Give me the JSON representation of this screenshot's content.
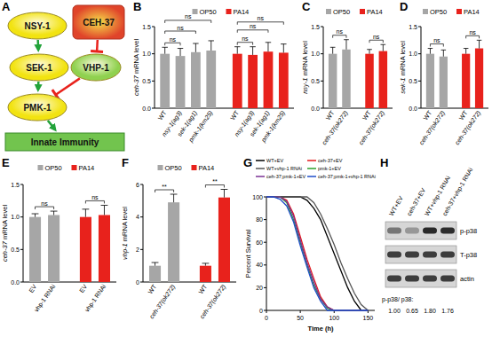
{
  "diagram": {
    "title": "A",
    "nodes": [
      {
        "label": "NSY-1",
        "shape": "ellipse",
        "color": "#f2e311"
      },
      {
        "label": "CEH-37",
        "shape": "rounded_box",
        "color": "#e0442a"
      },
      {
        "label": "SEK-1",
        "shape": "ellipse",
        "color": "#f2e311"
      },
      {
        "label": "VHP-1",
        "shape": "ellipse",
        "color": "#8fd14f"
      },
      {
        "label": "PMK-1",
        "shape": "ellipse",
        "color": "#f2e311"
      },
      {
        "label": "Innate Immunity",
        "shape": "box",
        "color": "#72c44e"
      }
    ],
    "edges": [
      {
        "from": 0,
        "to": 2,
        "type": "activate"
      },
      {
        "from": 2,
        "to": 4,
        "type": "activate"
      },
      {
        "from": 4,
        "to": 5,
        "type": "activate"
      },
      {
        "from": 1,
        "to": 3,
        "type": "inhibit"
      },
      {
        "from": 3,
        "to": 4,
        "type": "inhibit"
      }
    ]
  },
  "chart_data": [
    {
      "type": "bar",
      "title": "B",
      "y_label": "ceh-37 mRNA level",
      "categories": [
        "WT",
        "nsy-1(ag3)",
        "sek-1(ag1)",
        "pmk-1(km25)",
        "WT",
        "nsy-1(ag3)",
        "sek-1(ag1)",
        "pmk-1(km25)"
      ],
      "series": [
        {
          "name": "OP50",
          "color": "#a6a6a6",
          "values": [
            1.0,
            0.96,
            1.03,
            1.06,
            null,
            null,
            null,
            null
          ],
          "errors": [
            0.12,
            0.14,
            0.16,
            0.18,
            null,
            null,
            null,
            null
          ]
        },
        {
          "name": "PA14",
          "color": "#e8221c",
          "values": [
            null,
            null,
            null,
            null,
            1.0,
            0.98,
            1.04,
            1.02
          ],
          "errors": [
            null,
            null,
            null,
            null,
            0.13,
            0.15,
            0.17,
            0.16
          ]
        }
      ],
      "ylim": [
        0,
        1.5
      ],
      "yticks": [
        {
          "value": 0,
          "label": "0.0"
        },
        0.5,
        {
          "value": 1,
          "label": "1.0"
        },
        1.5
      ],
      "legend": "top",
      "annotations": [
        {
          "text": "ns",
          "from": 0,
          "to": 1
        },
        {
          "text": "ns",
          "from": 0,
          "to": 2
        },
        {
          "text": "ns",
          "from": 0,
          "to": 3
        },
        {
          "text": "ns",
          "from": 4,
          "to": 5
        },
        {
          "text": "ns",
          "from": 4,
          "to": 6
        },
        {
          "text": "ns",
          "from": 4,
          "to": 7
        }
      ]
    },
    {
      "type": "bar",
      "title": "C",
      "y_label": "nsy-1 mRNA level",
      "categories": [
        "WT",
        "ceh-37(ok272)",
        "WT",
        "ceh-37(ok272)"
      ],
      "series": [
        {
          "name": "OP50",
          "color": "#a6a6a6",
          "values": [
            1.0,
            1.08,
            null,
            null
          ],
          "errors": [
            0.12,
            0.18,
            null,
            null
          ]
        },
        {
          "name": "PA14",
          "color": "#e8221c",
          "values": [
            null,
            null,
            1.0,
            1.05
          ],
          "errors": [
            null,
            null,
            0.08,
            0.12
          ]
        }
      ],
      "ylim": [
        0,
        1.5
      ],
      "yticks": [
        {
          "value": 0,
          "label": "0.0"
        },
        0.5,
        {
          "value": 1,
          "label": "1.0"
        },
        1.5
      ],
      "legend": "top",
      "annotations": [
        {
          "text": "ns",
          "from": 0,
          "to": 1
        },
        {
          "text": "ns",
          "from": 2,
          "to": 3
        }
      ]
    },
    {
      "type": "bar",
      "title": "D",
      "y_label": "sek-1 mRNA level",
      "categories": [
        "WT",
        "ceh-37(ok272)",
        "WT",
        "ceh-37(ok272)"
      ],
      "series": [
        {
          "name": "OP50",
          "color": "#a6a6a6",
          "values": [
            1.0,
            0.95,
            null,
            null
          ],
          "errors": [
            0.1,
            0.12,
            null,
            null
          ]
        },
        {
          "name": "PA14",
          "color": "#e8221c",
          "values": [
            null,
            null,
            1.0,
            1.1
          ],
          "errors": [
            null,
            null,
            0.1,
            0.15
          ]
        }
      ],
      "ylim": [
        0,
        1.5
      ],
      "yticks": [
        {
          "value": 0,
          "label": "0.0"
        },
        0.5,
        {
          "value": 1,
          "label": "1.0"
        },
        1.5
      ],
      "legend": "top",
      "annotations": [
        {
          "text": "ns",
          "from": 0,
          "to": 1
        },
        {
          "text": "ns",
          "from": 2,
          "to": 3
        }
      ]
    },
    {
      "type": "bar",
      "title": "E",
      "y_label": "ceh-37 mRNA level",
      "categories": [
        "EV",
        "vhp-1 RNAi",
        "EV",
        "vhp-1 RNAi"
      ],
      "series": [
        {
          "name": "OP50",
          "color": "#a6a6a6",
          "values": [
            1.0,
            1.03,
            null,
            null
          ],
          "errors": [
            0.05,
            0.06,
            null,
            null
          ]
        },
        {
          "name": "PA14",
          "color": "#e8221c",
          "values": [
            null,
            null,
            1.0,
            1.03
          ],
          "errors": [
            null,
            null,
            0.12,
            0.15
          ]
        }
      ],
      "ylim": [
        0,
        1.5
      ],
      "yticks": [
        {
          "value": 0,
          "label": "0.0"
        },
        0.5,
        {
          "value": 1,
          "label": "1.0"
        },
        1.5
      ],
      "legend": "top",
      "annotations": [
        {
          "text": "ns",
          "from": 0,
          "to": 1
        },
        {
          "text": "ns",
          "from": 2,
          "to": 3
        }
      ]
    },
    {
      "type": "bar",
      "title": "F",
      "y_label": "vhp-1 mRNA level",
      "categories": [
        "WT",
        "ceh-37(ok272)",
        "WT",
        "ceh-37(ok272)"
      ],
      "series": [
        {
          "name": "OP50",
          "color": "#a6a6a6",
          "values": [
            1.0,
            4.9,
            null,
            null
          ],
          "errors": [
            0.2,
            0.5,
            null,
            null
          ]
        },
        {
          "name": "PA14",
          "color": "#e8221c",
          "values": [
            null,
            null,
            1.0,
            5.2
          ],
          "errors": [
            null,
            null,
            0.15,
            0.5
          ]
        }
      ],
      "ylim": [
        0,
        6
      ],
      "yticks": [
        0,
        2,
        4,
        6
      ],
      "legend": "top",
      "annotations": [
        {
          "text": "**",
          "from": 0,
          "to": 1
        },
        {
          "text": "**",
          "from": 2,
          "to": 3
        }
      ]
    },
    {
      "type": "line",
      "title": "G",
      "y_label": "Percent Survival",
      "x_label": "Time (h)",
      "x": [
        0,
        10,
        20,
        30,
        40,
        50,
        60,
        70,
        80,
        90,
        100,
        110,
        120,
        130,
        140,
        150
      ],
      "series": [
        {
          "name": "WT+EV",
          "color": "#000000",
          "values": [
            100,
            100,
            100,
            100,
            100,
            100,
            97,
            90,
            80,
            65,
            50,
            35,
            20,
            8,
            0,
            0
          ]
        },
        {
          "name": "ceh-37+EV",
          "color": "#e41a1c",
          "values": [
            100,
            100,
            100,
            97,
            85,
            65,
            45,
            28,
            12,
            3,
            0,
            0,
            0,
            0,
            0,
            0
          ]
        },
        {
          "name": "WT+vhp-1 RNAi",
          "color": "#555555",
          "values": [
            100,
            100,
            100,
            100,
            100,
            100,
            100,
            95,
            85,
            72,
            58,
            42,
            28,
            15,
            5,
            0
          ]
        },
        {
          "name": "pmk-1+EV",
          "color": "#2ca02c",
          "values": [
            100,
            100,
            100,
            95,
            80,
            60,
            40,
            22,
            10,
            2,
            0,
            0,
            0,
            0,
            0,
            0
          ]
        },
        {
          "name": "ceh-37;pmk-1+EV",
          "color": "#7b3294",
          "values": [
            100,
            100,
            100,
            96,
            83,
            62,
            42,
            25,
            10,
            3,
            0,
            0,
            0,
            0,
            0,
            0
          ]
        },
        {
          "name": "ceh-37;pmk-1+vhp-1 RNAi",
          "color": "#1f4ec8",
          "values": [
            100,
            100,
            98,
            92,
            78,
            57,
            38,
            20,
            8,
            0,
            0,
            0,
            0,
            0,
            0,
            0
          ]
        }
      ],
      "xlim": [
        0,
        160
      ],
      "xticks": [
        0,
        50,
        100,
        150
      ],
      "ylim": [
        0,
        100
      ],
      "yticks": [
        0,
        20,
        40,
        60,
        80,
        100
      ],
      "legend": "top"
    }
  ],
  "blot": {
    "title": "H",
    "lanes": [
      "WT+EV",
      "ceh-37+EV",
      "WT+vhp-1 RNAi",
      "ceh-37+vhp-1 RNAi"
    ],
    "rows": [
      "p-p38",
      "T-p38",
      "actin"
    ],
    "ratio_label": "p-p38/ p38:",
    "values": [
      1.0,
      0.65,
      1.8,
      1.76
    ],
    "value_labels": [
      "1.00",
      "0.65",
      "1.80",
      "1.76"
    ]
  }
}
